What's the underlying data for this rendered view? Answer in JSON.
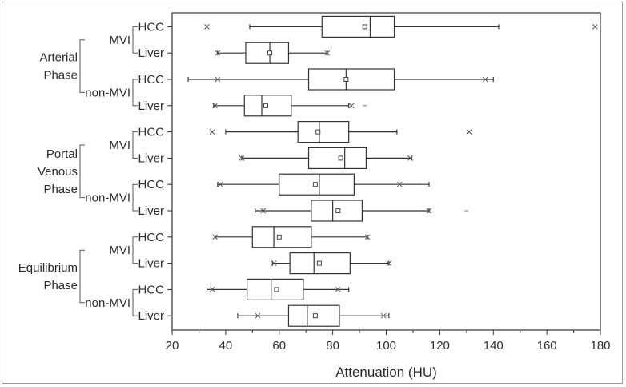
{
  "chart_data": {
    "type": "boxplot",
    "orientation": "horizontal",
    "xlabel": "Attenuation (HU)",
    "xlim": [
      20,
      180
    ],
    "xticks": [
      20,
      40,
      60,
      80,
      100,
      120,
      140,
      160,
      180
    ],
    "groups": [
      {
        "phase": "Arterial\nPhase",
        "subgroups": [
          {
            "name": "MVI",
            "rows": [
              {
                "label": "HCC",
                "whisker_low": 49,
                "q1": 76,
                "median": 94,
                "q3": 103,
                "whisker_high": 142,
                "mean": 92,
                "minmax": [
                  33,
                  178
                ],
                "outliers": []
              },
              {
                "label": "Liver",
                "whisker_low": 37,
                "q1": 47.5,
                "median": 56.5,
                "q3": 63.5,
                "whisker_high": 78,
                "mean": 56.5,
                "minmax": [
                  37,
                  78
                ],
                "outliers": []
              }
            ]
          },
          {
            "name": "non-MVI",
            "rows": [
              {
                "label": "HCC",
                "whisker_low": 26,
                "q1": 71,
                "median": 85,
                "q3": 103,
                "whisker_high": 140,
                "mean": 85,
                "minmax": [
                  37,
                  137
                ],
                "outliers": []
              },
              {
                "label": "Liver",
                "whisker_low": 35.5,
                "q1": 47,
                "median": 53.5,
                "q3": 64.5,
                "whisker_high": 86,
                "mean": 55,
                "minmax": [
                  36,
                  87
                ],
                "outliers": [
                  92
                ]
              }
            ]
          }
        ]
      },
      {
        "phase": "Portal\nVenous\nPhase",
        "subgroups": [
          {
            "name": "MVI",
            "rows": [
              {
                "label": "HCC",
                "whisker_low": 40,
                "q1": 67,
                "median": 75,
                "q3": 86,
                "whisker_high": 104,
                "mean": 74.5,
                "minmax": [
                  35,
                  131
                ],
                "outliers": []
              },
              {
                "label": "Liver",
                "whisker_low": 46,
                "q1": 71,
                "median": 84.5,
                "q3": 92.5,
                "whisker_high": 109.5,
                "mean": 83,
                "minmax": [
                  46,
                  109
                ],
                "outliers": []
              }
            ]
          },
          {
            "name": "non-MVI",
            "rows": [
              {
                "label": "HCC",
                "whisker_low": 37,
                "q1": 60,
                "median": 75,
                "q3": 88,
                "whisker_high": 116,
                "mean": 73.5,
                "minmax": [
                  38,
                  105
                ],
                "outliers": []
              },
              {
                "label": "Liver",
                "whisker_low": 51,
                "q1": 72,
                "median": 80,
                "q3": 91,
                "whisker_high": 116,
                "mean": 82,
                "minmax": [
                  54,
                  116
                ],
                "outliers": [
                  130
                ]
              }
            ]
          }
        ]
      },
      {
        "phase": "Equilibrium\nPhase",
        "subgroups": [
          {
            "name": "MVI",
            "rows": [
              {
                "label": "HCC",
                "whisker_low": 36,
                "q1": 50,
                "median": 58,
                "q3": 72,
                "whisker_high": 93,
                "mean": 60,
                "minmax": [
                  36,
                  93
                ],
                "outliers": []
              },
              {
                "label": "Liver",
                "whisker_low": 57.5,
                "q1": 64,
                "median": 73,
                "q3": 86.5,
                "whisker_high": 101,
                "mean": 75,
                "minmax": [
                  58,
                  101
                ],
                "outliers": []
              }
            ]
          },
          {
            "name": "non-MVI",
            "rows": [
              {
                "label": "HCC",
                "whisker_low": 33,
                "q1": 48,
                "median": 57,
                "q3": 69,
                "whisker_high": 86,
                "mean": 59,
                "minmax": [
                  35,
                  82
                ],
                "outliers": []
              },
              {
                "label": "Liver",
                "whisker_low": 44.5,
                "q1": 63.5,
                "median": 70.5,
                "q3": 82.5,
                "whisker_high": 101,
                "mean": 73.5,
                "minmax": [
                  52,
                  99
                ],
                "outliers": []
              }
            ]
          }
        ]
      }
    ]
  }
}
